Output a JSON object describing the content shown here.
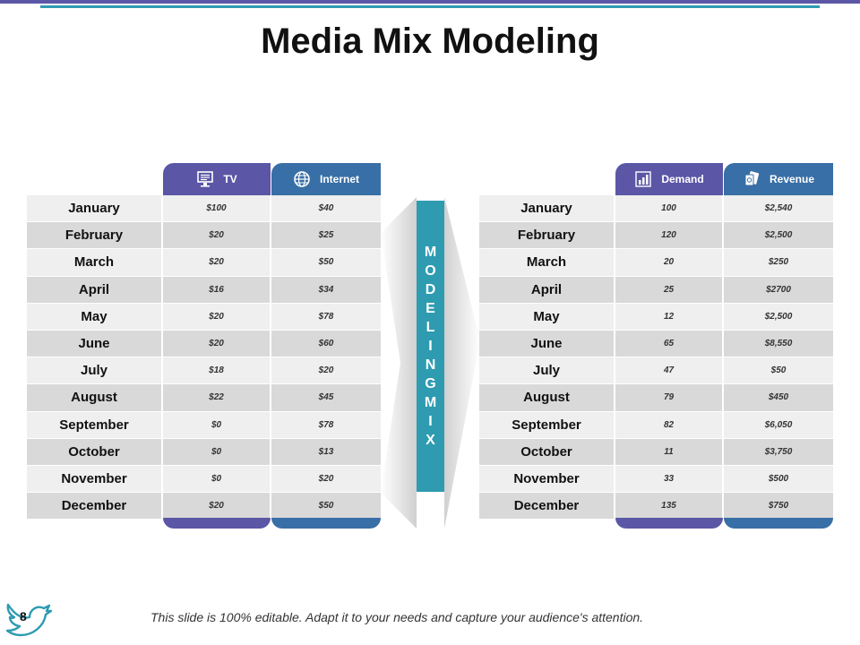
{
  "slide": {
    "title": "Media Mix Modeling",
    "page_number": "8",
    "footer_text": "This slide is 100% editable. Adapt it to your needs and capture your audience's attention.",
    "center_label_letters": [
      "M",
      "O",
      "D",
      "E",
      "L",
      "I",
      "N",
      "G",
      "M",
      "I",
      "X"
    ],
    "colors": {
      "purple": "#5b57a6",
      "blue": "#386fa6",
      "teal": "#2e9bb1",
      "row_light": "#efefef",
      "row_dark": "#d9d9d9"
    }
  },
  "left_table": {
    "headers": [
      {
        "label": "TV",
        "icon": "tv-icon"
      },
      {
        "label": "Internet",
        "icon": "globe-icon"
      }
    ],
    "rows": [
      {
        "month": "January",
        "v1": "$100",
        "v2": "$40"
      },
      {
        "month": "February",
        "v1": "$20",
        "v2": "$25"
      },
      {
        "month": "March",
        "v1": "$20",
        "v2": "$50"
      },
      {
        "month": "April",
        "v1": "$16",
        "v2": "$34"
      },
      {
        "month": "May",
        "v1": "$20",
        "v2": "$78"
      },
      {
        "month": "June",
        "v1": "$20",
        "v2": "$60"
      },
      {
        "month": "July",
        "v1": "$18",
        "v2": "$20"
      },
      {
        "month": "August",
        "v1": "$22",
        "v2": "$45"
      },
      {
        "month": "September",
        "v1": "$0",
        "v2": "$78"
      },
      {
        "month": "October",
        "v1": "$0",
        "v2": "$13"
      },
      {
        "month": "November",
        "v1": "$0",
        "v2": "$20"
      },
      {
        "month": "December",
        "v1": "$20",
        "v2": "$50"
      }
    ]
  },
  "right_table": {
    "headers": [
      {
        "label": "Demand",
        "icon": "bar-chart-icon"
      },
      {
        "label": "Revenue",
        "icon": "money-icon"
      }
    ],
    "rows": [
      {
        "month": "January",
        "v1": "100",
        "v2": "$2,540"
      },
      {
        "month": "February",
        "v1": "120",
        "v2": "$2,500"
      },
      {
        "month": "March",
        "v1": "20",
        "v2": "$250"
      },
      {
        "month": "April",
        "v1": "25",
        "v2": "$2700"
      },
      {
        "month": "May",
        "v1": "12",
        "v2": "$2,500"
      },
      {
        "month": "June",
        "v1": "65",
        "v2": "$8,550"
      },
      {
        "month": "July",
        "v1": "47",
        "v2": "$50"
      },
      {
        "month": "August",
        "v1": "79",
        "v2": "$450"
      },
      {
        "month": "September",
        "v1": "82",
        "v2": "$6,050"
      },
      {
        "month": "October",
        "v1": "11",
        "v2": "$3,750"
      },
      {
        "month": "November",
        "v1": "33",
        "v2": "$500"
      },
      {
        "month": "December",
        "v1": "135",
        "v2": "$750"
      }
    ]
  }
}
